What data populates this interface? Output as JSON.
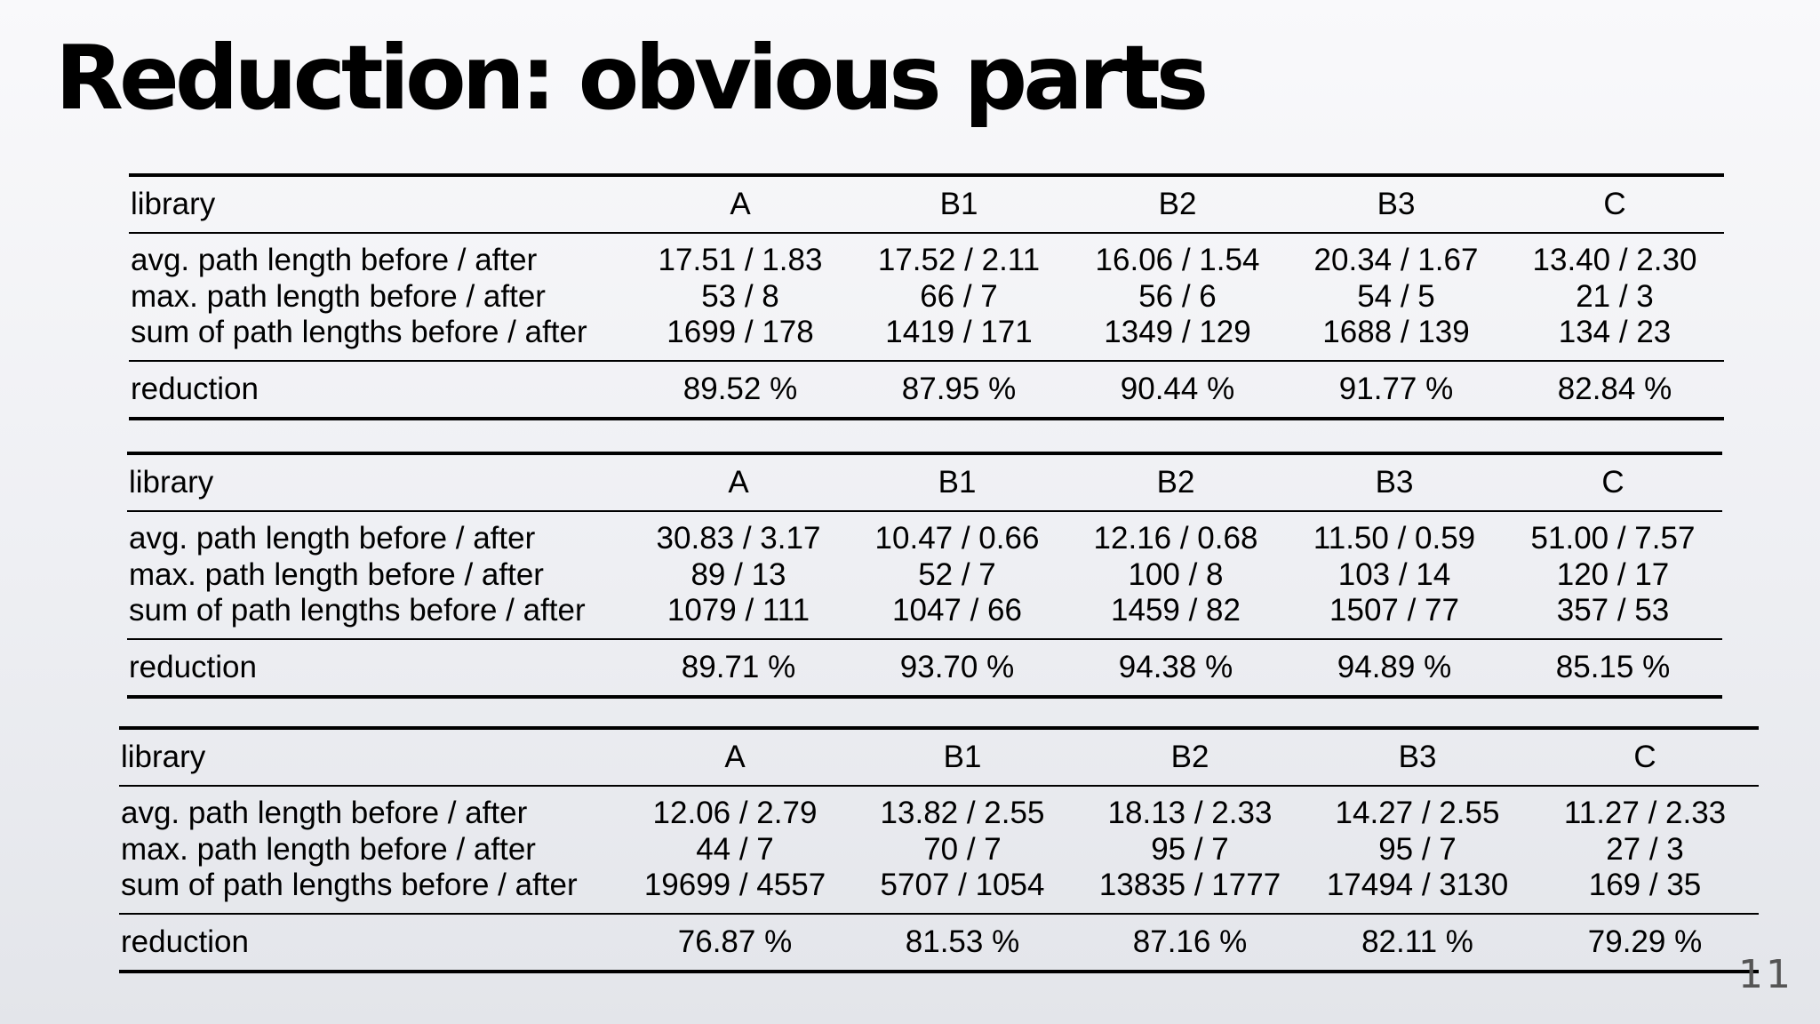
{
  "title": "Reduction: obvious parts",
  "page_number": "11",
  "tables": [
    {
      "header": [
        "library",
        "A",
        "B1",
        "B2",
        "B3",
        "C"
      ],
      "metrics": [
        [
          "avg. path length before / after",
          "17.51 / 1.83",
          "17.52 / 2.11",
          "16.06 / 1.54",
          "20.34 / 1.67",
          "13.40 / 2.30"
        ],
        [
          "max. path length before / after",
          "53 / 8",
          "66 / 7",
          "56 / 6",
          "54 / 5",
          "21 / 3"
        ],
        [
          "sum of path lengths before / after",
          "1699 / 178",
          "1419 / 171",
          "1349 / 129",
          "1688 / 139",
          "134 / 23"
        ]
      ],
      "reduction": [
        "reduction",
        "89.52 %",
        "87.95 %",
        "90.44 %",
        "91.77 %",
        "82.84 %"
      ]
    },
    {
      "header": [
        "library",
        "A",
        "B1",
        "B2",
        "B3",
        "C"
      ],
      "metrics": [
        [
          "avg. path length before / after",
          "30.83 / 3.17",
          "10.47 / 0.66",
          "12.16 / 0.68",
          "11.50 / 0.59",
          "51.00 / 7.57"
        ],
        [
          "max. path length before / after",
          "89 / 13",
          "52 / 7",
          "100 / 8",
          "103 / 14",
          "120 / 17"
        ],
        [
          "sum of path lengths before / after",
          "1079 / 111",
          "1047 / 66",
          "1459 / 82",
          "1507 / 77",
          "357 / 53"
        ]
      ],
      "reduction": [
        "reduction",
        "89.71 %",
        "93.70 %",
        "94.38 %",
        "94.89 %",
        "85.15 %"
      ]
    },
    {
      "header": [
        "library",
        "A",
        "B1",
        "B2",
        "B3",
        "C"
      ],
      "metrics": [
        [
          "avg. path length before / after",
          "12.06 / 2.79",
          "13.82 / 2.55",
          "18.13 / 2.33",
          "14.27 / 2.55",
          "11.27 / 2.33"
        ],
        [
          "max. path length before / after",
          "44 / 7",
          "70 / 7",
          "95 / 7",
          "95 / 7",
          "27 / 3"
        ],
        [
          "sum of path lengths before / after",
          "19699 / 4557",
          "5707 / 1054",
          "13835 / 1777",
          "17494 / 3130",
          "169 / 35"
        ]
      ],
      "reduction": [
        "reduction",
        "76.87 %",
        "81.53 %",
        "87.16 %",
        "82.11 %",
        "79.29 %"
      ]
    }
  ]
}
